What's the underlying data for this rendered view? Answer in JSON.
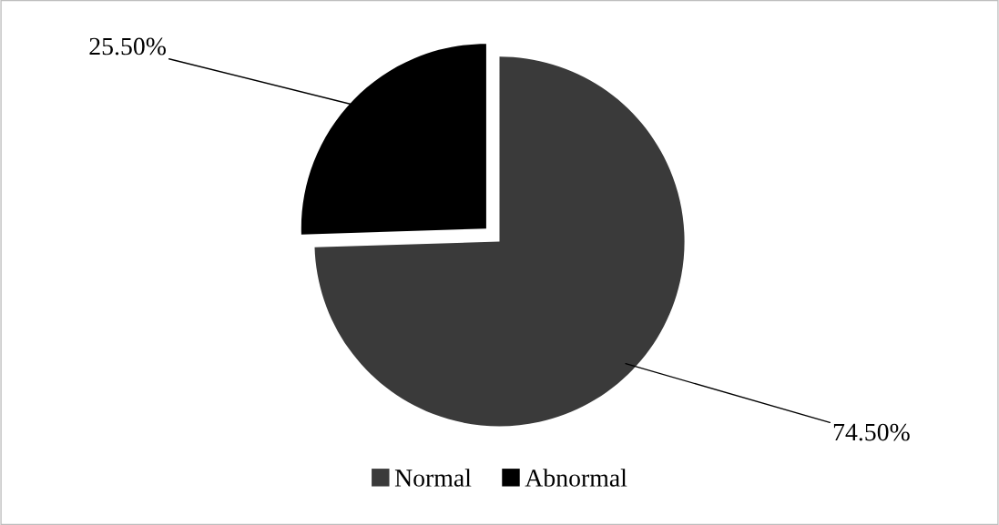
{
  "chart_data": {
    "type": "pie",
    "categories": [
      "Normal",
      "Abnormal"
    ],
    "values": [
      74.5,
      25.5
    ],
    "colors": [
      "#3a3a3a",
      "#000000"
    ],
    "value_labels": [
      "74.50%",
      "25.50%"
    ],
    "legend": "bottom"
  }
}
